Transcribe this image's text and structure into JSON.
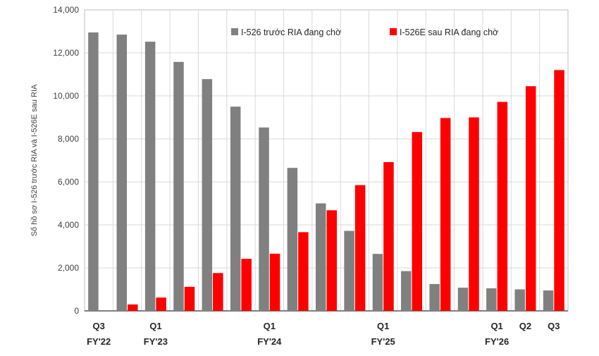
{
  "chart_data": {
    "type": "bar",
    "ylabel": "Số hồ sơ I-526 trước RIA và I-526E sau RIA",
    "ylim": [
      0,
      14000
    ],
    "yticks": [
      0,
      2000,
      4000,
      6000,
      8000,
      10000,
      12000,
      14000
    ],
    "ytick_labels": [
      "0",
      "2,000",
      "4,000",
      "6,000",
      "8,000",
      "10,000",
      "12,000",
      "14,000"
    ],
    "grid": true,
    "legend_position": "top-right",
    "categories": [
      "Q3 FY'22",
      "Q4 FY'22",
      "Q1 FY'23",
      "Q2 FY'23",
      "Q3 FY'23",
      "Q4 FY'23",
      "Q1 FY'24",
      "Q2 FY'24",
      "Q3 FY'24",
      "Q4 FY'24",
      "Q1 FY'25",
      "Q2 FY'25",
      "Q3 FY'25",
      "Q4 FY'25",
      "Q1 FY'26",
      "Q2 FY'26",
      "Q3 FY'26"
    ],
    "x_tick_labels": [
      {
        "index": 0,
        "line1": "Q3",
        "line2": "FY'22"
      },
      {
        "index": 2,
        "line1": "Q1",
        "line2": "FY'23"
      },
      {
        "index": 6,
        "line1": "Q1",
        "line2": "FY'24"
      },
      {
        "index": 10,
        "line1": "Q1",
        "line2": "FY'25"
      },
      {
        "index": 14,
        "line1": "Q1",
        "line2": "FY'26"
      },
      {
        "index": 15,
        "line1": "Q2",
        "line2": ""
      },
      {
        "index": 16,
        "line1": "Q3",
        "line2": ""
      }
    ],
    "series": [
      {
        "name": "I-526 trước RIA đang chờ",
        "color": "#808080",
        "values": [
          12950,
          12850,
          12520,
          11580,
          10780,
          9500,
          8530,
          6650,
          5000,
          3720,
          2650,
          1850,
          1250,
          1080,
          1050,
          1000,
          950
        ]
      },
      {
        "name": "I-526E sau RIA đang chờ",
        "color": "#ff0000",
        "values": [
          0,
          300,
          620,
          1120,
          1760,
          2420,
          2660,
          3660,
          4680,
          5850,
          6920,
          8320,
          8970,
          9000,
          9720,
          10450,
          11200
        ]
      }
    ]
  }
}
